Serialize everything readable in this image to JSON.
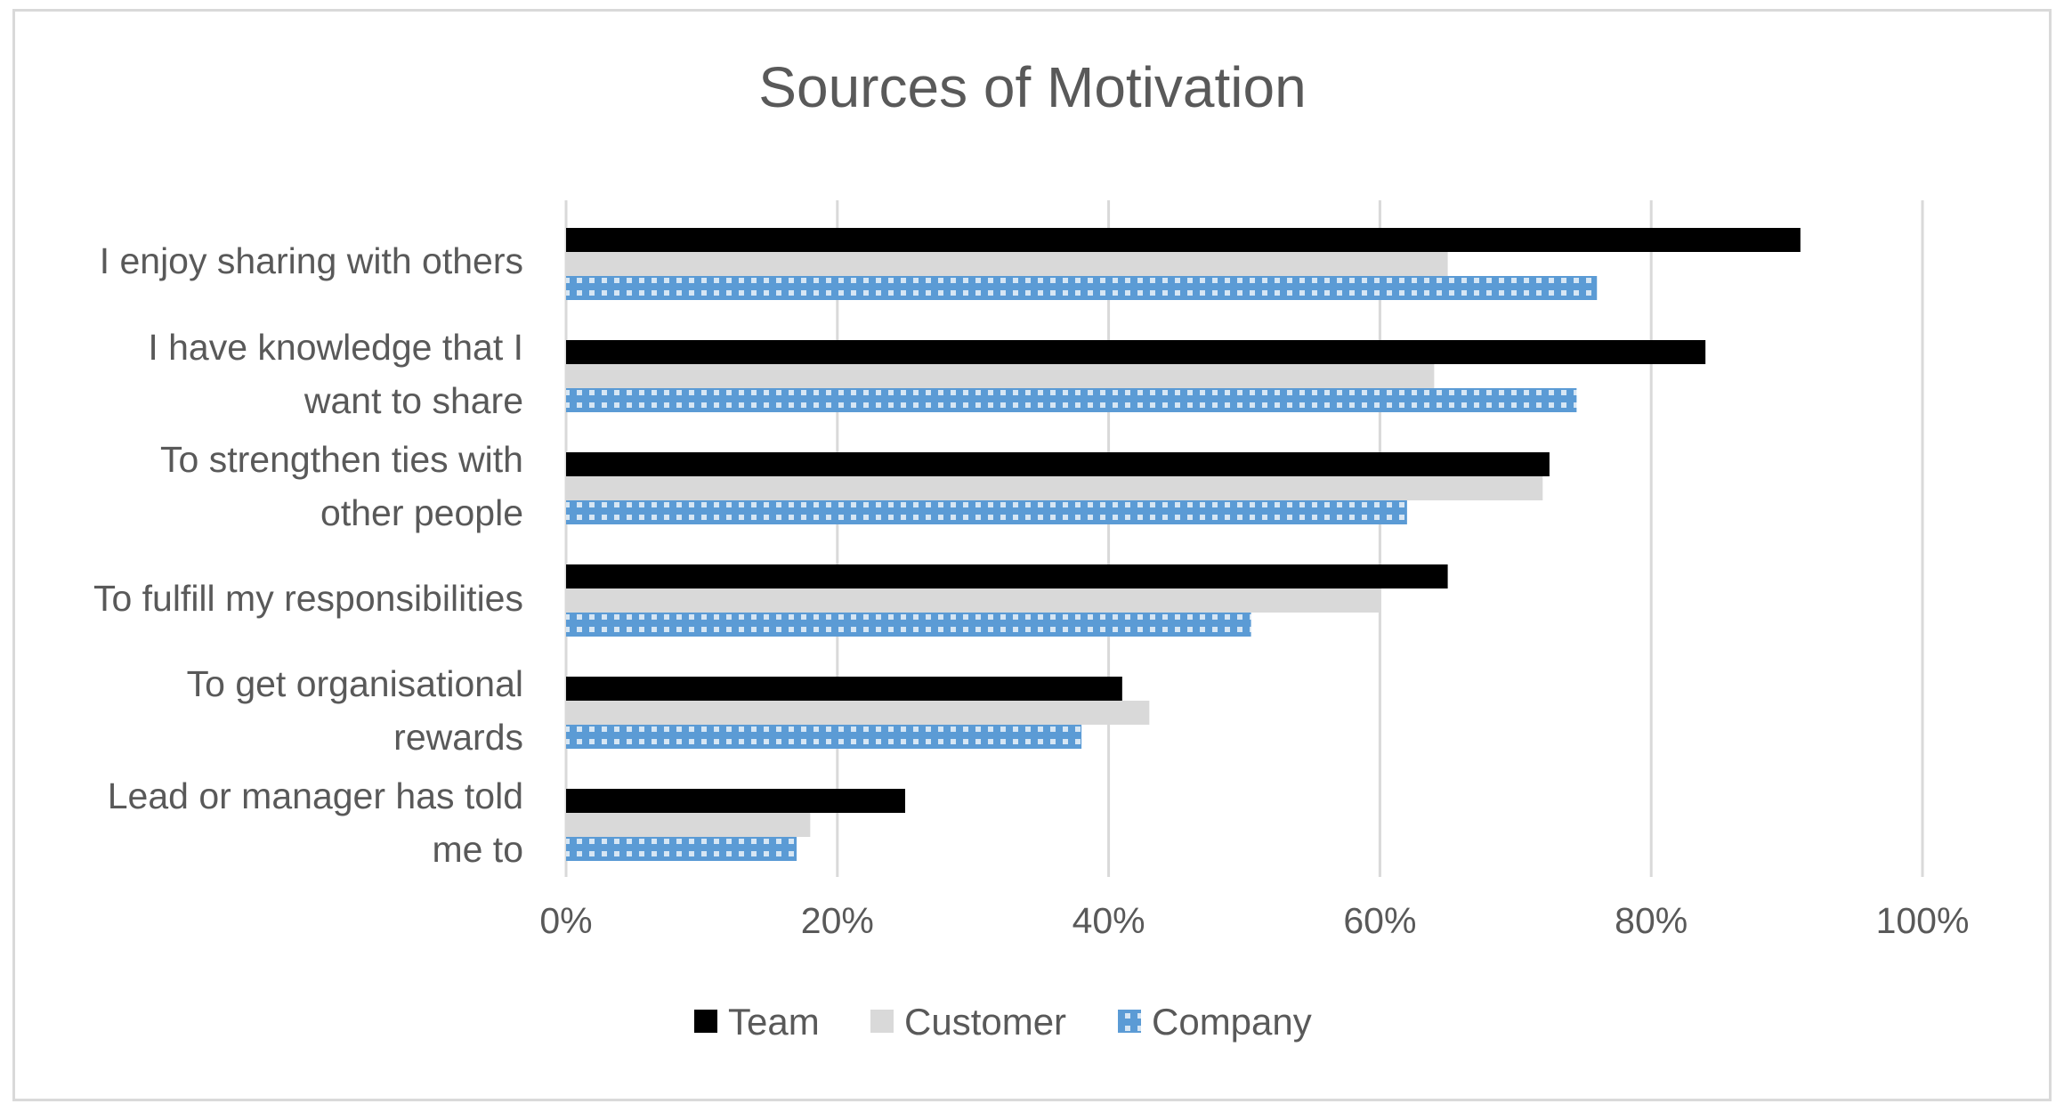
{
  "chart_data": {
    "type": "bar",
    "orientation": "horizontal",
    "title": "Sources of Motivation",
    "categories": [
      [
        "I enjoy sharing with others"
      ],
      [
        "I have knowledge that I",
        "want to share"
      ],
      [
        "To strengthen ties with",
        "other people"
      ],
      [
        "To fulfill my responsibilities"
      ],
      [
        "To get organisational",
        "rewards"
      ],
      [
        "Lead or manager has told",
        "me to"
      ]
    ],
    "series": [
      {
        "name": "Team",
        "color": "#000000",
        "pattern": "solid",
        "values": [
          91,
          84,
          72.5,
          65,
          41,
          25
        ]
      },
      {
        "name": "Customer",
        "color": "#d9d9d9",
        "pattern": "solid",
        "values": [
          65,
          64,
          72,
          60,
          43,
          18
        ]
      },
      {
        "name": "Company",
        "color": "#5b9bd5",
        "pattern": "dotted-grid",
        "values": [
          76,
          74.5,
          62,
          50.5,
          38,
          17
        ]
      }
    ],
    "xlim": [
      0,
      100
    ],
    "xticks": [
      "0%",
      "20%",
      "40%",
      "60%",
      "80%",
      "100%"
    ],
    "tick_values": [
      0,
      20,
      40,
      60,
      80,
      100
    ],
    "grid": true,
    "legend_position": "bottom"
  }
}
